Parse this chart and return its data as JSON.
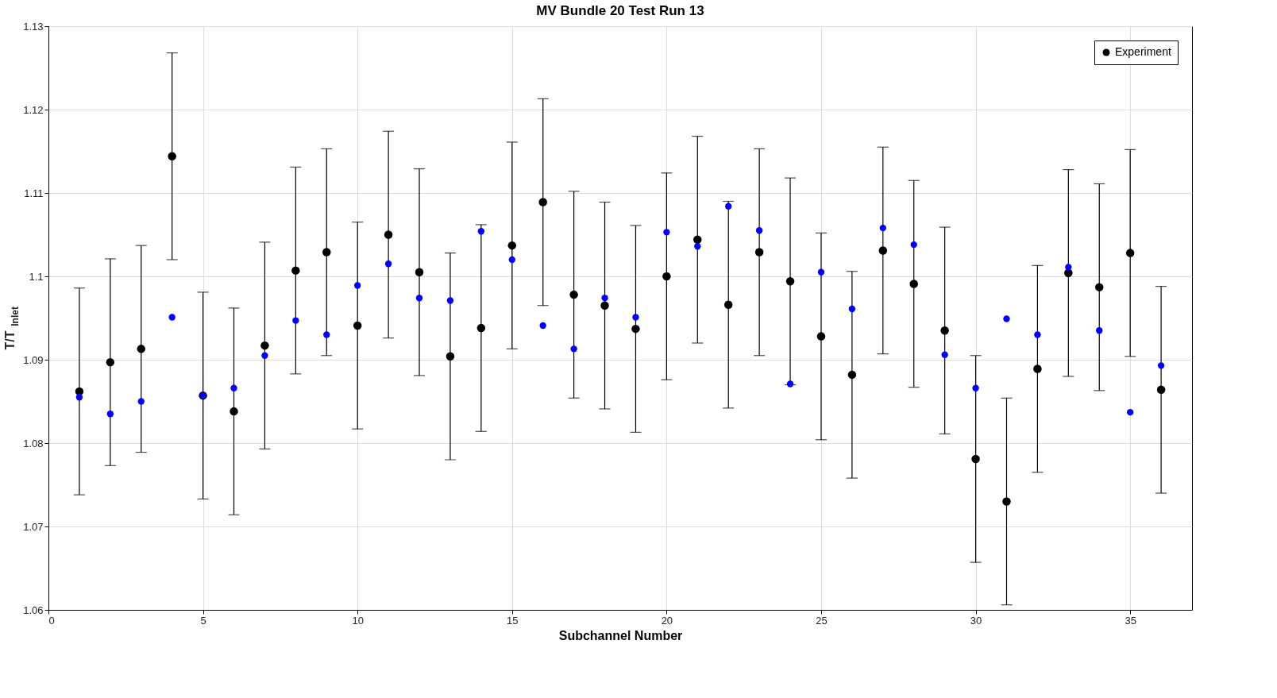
{
  "chart_data": {
    "type": "scatter",
    "title": "MV Bundle 20 Test Run 13",
    "xlabel": "Subchannel Number",
    "ylabel": "T/T$_{Inlet}$",
    "x": [
      1,
      2,
      3,
      4,
      5,
      6,
      7,
      8,
      9,
      10,
      11,
      12,
      13,
      14,
      15,
      16,
      17,
      18,
      19,
      20,
      21,
      22,
      23,
      24,
      25,
      26,
      27,
      28,
      29,
      30,
      31,
      32,
      33,
      34,
      35,
      36
    ],
    "series": [
      {
        "name": "Experiment",
        "color": "#000000",
        "values": [
          1.0862,
          1.0897,
          1.0913,
          1.1144,
          1.0857,
          1.0838,
          1.0917,
          1.1007,
          1.1029,
          1.0941,
          1.105,
          1.1005,
          1.0904,
          1.0938,
          1.1037,
          1.1089,
          1.0978,
          1.0965,
          1.0937,
          1.1,
          1.1044,
          1.0966,
          1.1029,
          1.0994,
          1.0928,
          1.0882,
          1.1031,
          1.0991,
          1.0935,
          1.0781,
          1.073,
          1.0889,
          1.1004,
          1.0987,
          1.1028,
          1.0864
        ],
        "errors": [
          0.0124,
          0.0124,
          0.0124,
          0.0124,
          0.0124,
          0.0124,
          0.0124,
          0.0124,
          0.0124,
          0.0124,
          0.0124,
          0.0124,
          0.0124,
          0.0124,
          0.0124,
          0.0124,
          0.0124,
          0.0124,
          0.0124,
          0.0124,
          0.0124,
          0.0124,
          0.0124,
          0.0124,
          0.0124,
          0.0124,
          0.0124,
          0.0124,
          0.0124,
          0.0124,
          0.0124,
          0.0124,
          0.0124,
          0.0124,
          0.0124,
          0.0124
        ]
      },
      {
        "color": "#0000ff",
        "values": [
          1.0855,
          1.0835,
          1.085,
          1.0951,
          1.0857,
          1.0866,
          1.0905,
          1.0947,
          1.093,
          1.0989,
          1.1015,
          1.0974,
          1.0971,
          1.1054,
          1.102,
          1.0941,
          1.0913,
          1.0974,
          1.0951,
          1.1053,
          1.1036,
          1.1084,
          1.1055,
          1.0871,
          1.1005,
          1.0961,
          1.1058,
          1.1038,
          1.0906,
          1.0866,
          1.0949,
          1.093,
          1.1011,
          1.0935,
          1.0837,
          1.0893
        ]
      }
    ],
    "xlim": [
      0,
      37
    ],
    "xticks": [
      0,
      5,
      10,
      15,
      20,
      25,
      30,
      35
    ],
    "ylim": [
      1.06,
      1.13
    ],
    "yticks": [
      1.06,
      1.07,
      1.08,
      1.09,
      1.1,
      1.11,
      1.12,
      1.13
    ],
    "grid": true,
    "legend": "top right",
    "marker": "circle"
  }
}
